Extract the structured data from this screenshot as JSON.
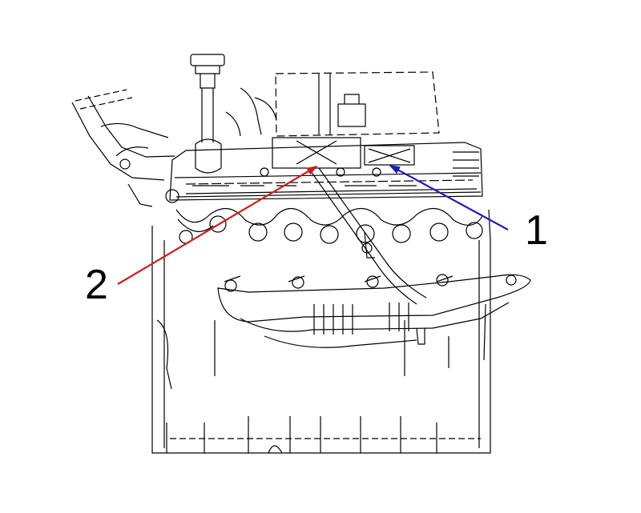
{
  "callouts": [
    {
      "id": "1",
      "label": "1",
      "arrow_color": "#1f1fb4"
    },
    {
      "id": "2",
      "label": "2",
      "arrow_color": "#cc1f1f"
    }
  ],
  "colors": {
    "line": "#000000",
    "background": "#ffffff"
  }
}
